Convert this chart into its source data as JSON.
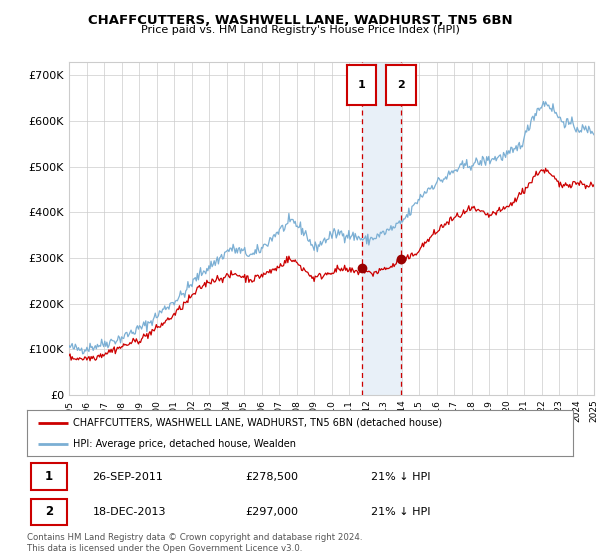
{
  "title": "CHAFFCUTTERS, WASHWELL LANE, WADHURST, TN5 6BN",
  "subtitle": "Price paid vs. HM Land Registry's House Price Index (HPI)",
  "legend_line1": "CHAFFCUTTERS, WASHWELL LANE, WADHURST, TN5 6BN (detached house)",
  "legend_line2": "HPI: Average price, detached house, Wealden",
  "transaction1_date": "26-SEP-2011",
  "transaction1_price": 278500,
  "transaction1_hpi": "21% ↓ HPI",
  "transaction2_date": "18-DEC-2013",
  "transaction2_price": 297000,
  "transaction2_hpi": "21% ↓ HPI",
  "footer": "Contains HM Land Registry data © Crown copyright and database right 2024.\nThis data is licensed under the Open Government Licence v3.0.",
  "hpi_color": "#7bafd4",
  "price_color": "#cc0000",
  "marker_color": "#990000",
  "vline_color": "#cc0000",
  "shade_color": "#e8f0f8",
  "grid_color": "#cccccc",
  "background_color": "#ffffff",
  "ylim": [
    0,
    730000
  ],
  "yticks": [
    0,
    100000,
    200000,
    300000,
    400000,
    500000,
    600000,
    700000
  ],
  "ytick_labels": [
    "£0",
    "£100K",
    "£200K",
    "£300K",
    "£400K",
    "£500K",
    "£600K",
    "£700K"
  ],
  "year_start": 1995,
  "year_end": 2025,
  "transaction1_year": 2011.73,
  "transaction2_year": 2013.96,
  "transaction1_val": 278500,
  "transaction2_val": 297000
}
